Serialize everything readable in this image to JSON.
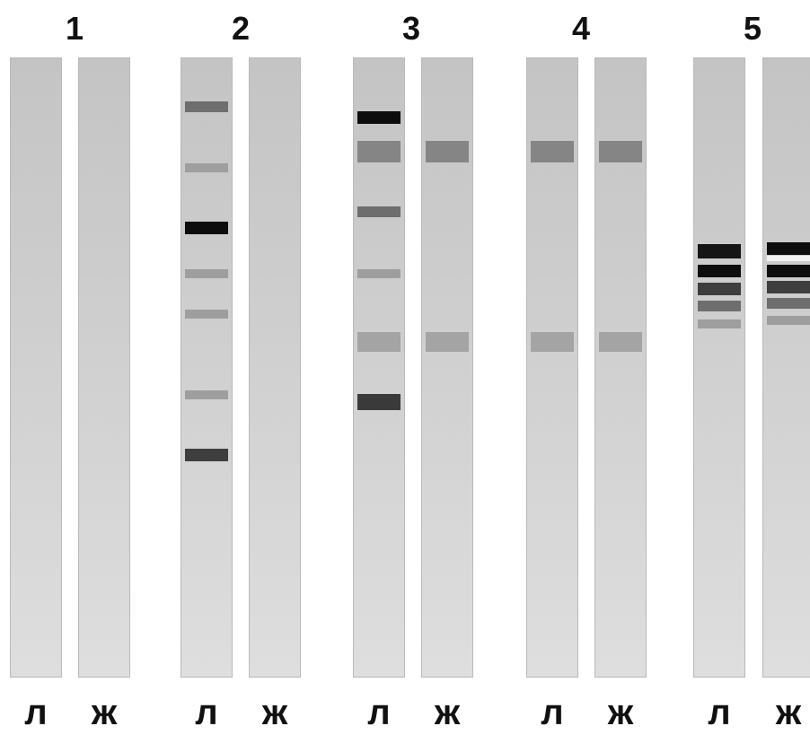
{
  "groups": [
    {
      "number": "1",
      "lanes": [
        {
          "label": "л",
          "bands": []
        },
        {
          "label": "ж",
          "bands": []
        }
      ]
    },
    {
      "number": "2",
      "lanes": [
        {
          "label": "л",
          "bands": [
            {
              "position": 0.078,
              "intensity": "medium"
            },
            {
              "position": 0.177,
              "intensity": "faint"
            },
            {
              "position": 0.273,
              "intensity": "strong"
            },
            {
              "position": 0.347,
              "intensity": "faint"
            },
            {
              "position": 0.412,
              "intensity": "faint"
            },
            {
              "position": 0.542,
              "intensity": "faint"
            },
            {
              "position": 0.639,
              "intensity": "medium-strong"
            }
          ]
        },
        {
          "label": "ж",
          "bands": []
        }
      ]
    },
    {
      "number": "3",
      "lanes": [
        {
          "label": "л",
          "bands": [
            {
              "position": 0.096,
              "intensity": "strong"
            },
            {
              "position": 0.151,
              "intensity": "medium-wide"
            },
            {
              "position": 0.248,
              "intensity": "medium"
            },
            {
              "position": 0.347,
              "intensity": "faint"
            },
            {
              "position": 0.457,
              "intensity": "faint-wide"
            },
            {
              "position": 0.554,
              "intensity": "medium-strong-wide"
            }
          ]
        },
        {
          "label": "ж",
          "bands": [
            {
              "position": 0.151,
              "intensity": "medium-wide"
            },
            {
              "position": 0.457,
              "intensity": "faint-wide"
            }
          ]
        }
      ]
    },
    {
      "number": "4",
      "lanes": [
        {
          "label": "л",
          "bands": [
            {
              "position": 0.151,
              "intensity": "medium-wide"
            },
            {
              "position": 0.457,
              "intensity": "faint-wide"
            }
          ]
        },
        {
          "label": "ж",
          "bands": [
            {
              "position": 0.151,
              "intensity": "medium-wide"
            },
            {
              "position": 0.457,
              "intensity": "faint-wide"
            }
          ]
        }
      ]
    },
    {
      "number": "5",
      "lanes": [
        {
          "label": "л",
          "bands": [
            {
              "position": 0.311,
              "intensity": "strong-wide"
            },
            {
              "position": 0.343,
              "intensity": "strong"
            },
            {
              "position": 0.372,
              "intensity": "medium-strong"
            },
            {
              "position": 0.399,
              "intensity": "medium"
            },
            {
              "position": 0.428,
              "intensity": "faint"
            }
          ]
        },
        {
          "label": "ж",
          "bands": [
            {
              "position": 0.307,
              "intensity": "strong"
            },
            {
              "position": 0.323,
              "intensity": "light-strong"
            },
            {
              "position": 0.343,
              "intensity": "strong"
            },
            {
              "position": 0.369,
              "intensity": "medium-strong"
            },
            {
              "position": 0.395,
              "intensity": "medium"
            },
            {
              "position": 0.423,
              "intensity": "faint"
            }
          ]
        }
      ]
    }
  ],
  "colors": {
    "strong": "#0d0d0d",
    "light-strong": "#f2f2f2",
    "strong-wide": "#151515",
    "medium-strong": "#3e3e3e",
    "medium-strong-wide": "#3a3a3a",
    "medium": "#6e6e6e",
    "medium-wide": "#858585",
    "faint": "#9e9e9e",
    "faint-wide": "#a4a4a4"
  }
}
